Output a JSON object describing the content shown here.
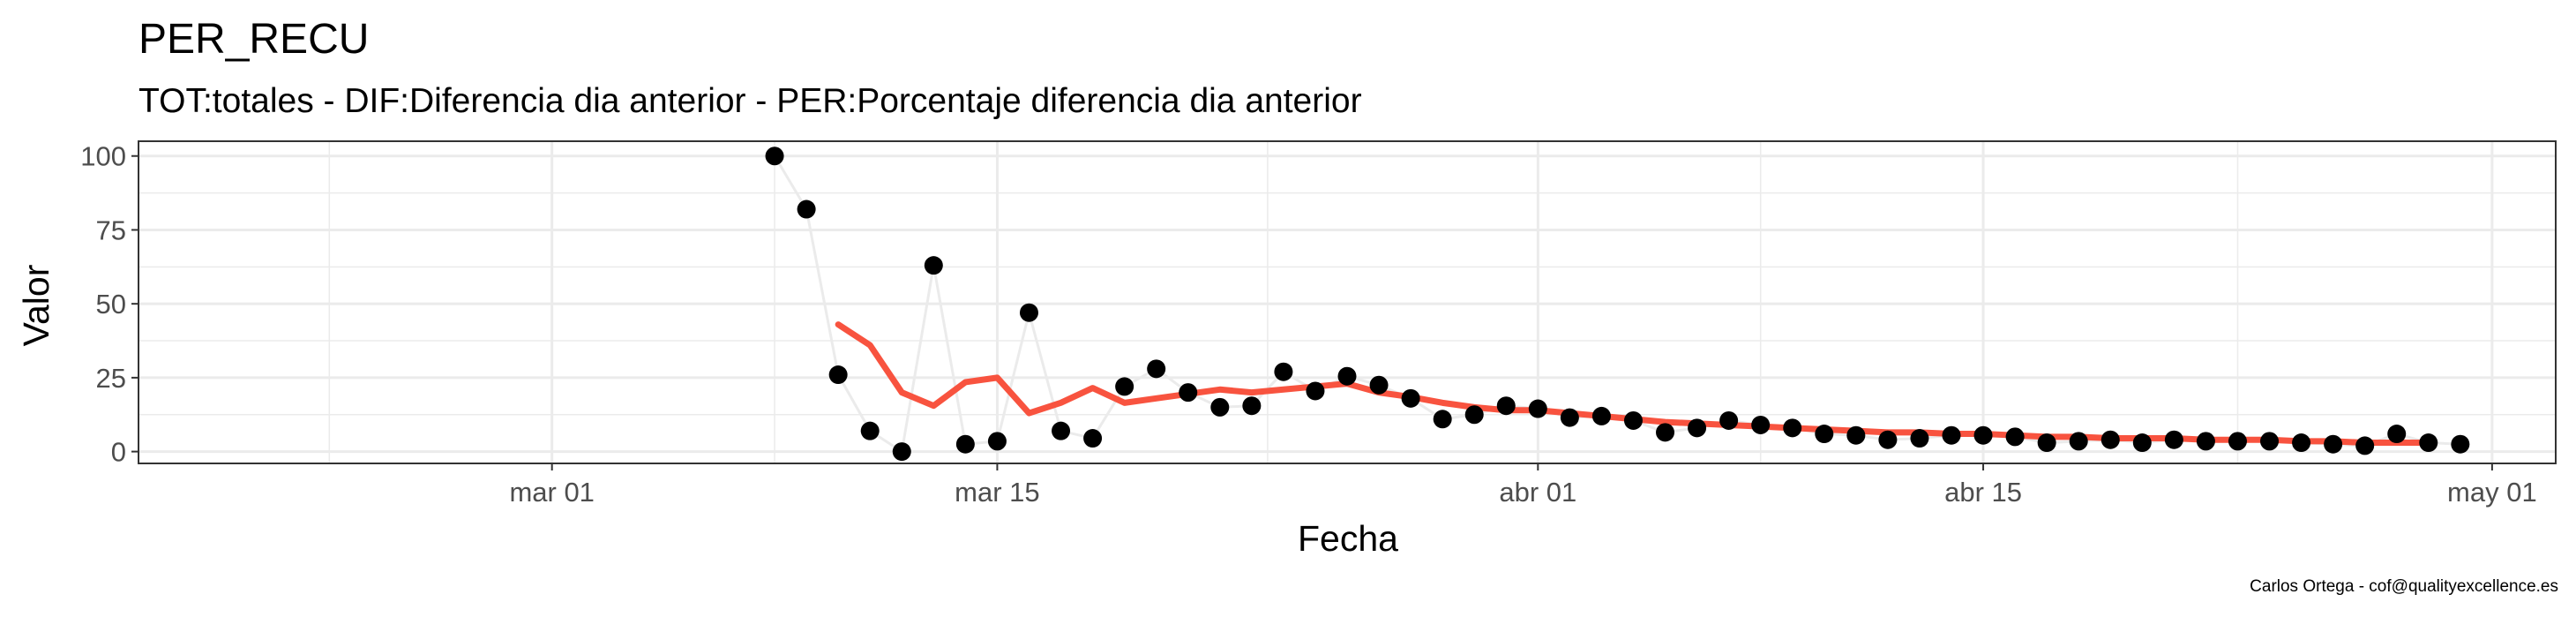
{
  "chart_data": {
    "type": "line",
    "title": "PER_RECU",
    "subtitle": "TOT:totales - DIF:Diferencia dia anterior - PER:Porcentaje diferencia dia anterior",
    "xlabel": "Fecha",
    "ylabel": "Valor",
    "caption": "Carlos Ortega - cof@qualityexcellence.es",
    "xlim": [
      "2020-02-17",
      "2020-05-03"
    ],
    "ylim": [
      -4,
      105
    ],
    "x_ticks": [
      {
        "date": "2020-03-01",
        "label": "mar 01"
      },
      {
        "date": "2020-03-15",
        "label": "mar 15"
      },
      {
        "date": "2020-04-01",
        "label": "abr 01"
      },
      {
        "date": "2020-04-15",
        "label": "abr 15"
      },
      {
        "date": "2020-05-01",
        "label": "may 01"
      }
    ],
    "y_ticks": [
      0,
      25,
      50,
      75,
      100
    ],
    "grid": true,
    "colors": {
      "points": "#000000",
      "raw_line": "#ebebeb",
      "smooth_line": "#f8533f",
      "grid": "#ebebeb",
      "panel_border": "#333333"
    },
    "series": [
      {
        "type": "points",
        "x": [
          "2020-03-08",
          "2020-03-09",
          "2020-03-10",
          "2020-03-11",
          "2020-03-12",
          "2020-03-13",
          "2020-03-14",
          "2020-03-15",
          "2020-03-16",
          "2020-03-17",
          "2020-03-18",
          "2020-03-19",
          "2020-03-20",
          "2020-03-21",
          "2020-03-22",
          "2020-03-23",
          "2020-03-24",
          "2020-03-25",
          "2020-03-26",
          "2020-03-27",
          "2020-03-28",
          "2020-03-29",
          "2020-03-30",
          "2020-03-31",
          "2020-04-01",
          "2020-04-02",
          "2020-04-03",
          "2020-04-04",
          "2020-04-05",
          "2020-04-06",
          "2020-04-07",
          "2020-04-08",
          "2020-04-09",
          "2020-04-10",
          "2020-04-11",
          "2020-04-12",
          "2020-04-13",
          "2020-04-14",
          "2020-04-15",
          "2020-04-16",
          "2020-04-17",
          "2020-04-18",
          "2020-04-19",
          "2020-04-20",
          "2020-04-21",
          "2020-04-22",
          "2020-04-23",
          "2020-04-24",
          "2020-04-25",
          "2020-04-26",
          "2020-04-27",
          "2020-04-28",
          "2020-04-29",
          "2020-04-30"
        ],
        "y": [
          100,
          82,
          26,
          7,
          0,
          63,
          2.5,
          3.5,
          47,
          7,
          4.5,
          22,
          28,
          20,
          15,
          15.5,
          27,
          20.5,
          25.5,
          22.5,
          18,
          11,
          12.5,
          15.5,
          14.5,
          11.5,
          12,
          10.5,
          6.5,
          8,
          10.5,
          9,
          8,
          6,
          5.5,
          4,
          4.5,
          5.5,
          5.5,
          5,
          3,
          3.5,
          4,
          3,
          4,
          3.5,
          3.5,
          3.5,
          3,
          2.5,
          2,
          6,
          3,
          2.5
        ]
      },
      {
        "type": "smooth",
        "x": [
          "2020-03-10",
          "2020-03-11",
          "2020-03-12",
          "2020-03-13",
          "2020-03-14",
          "2020-03-15",
          "2020-03-16",
          "2020-03-17",
          "2020-03-18",
          "2020-03-19",
          "2020-03-20",
          "2020-03-21",
          "2020-03-22",
          "2020-03-23",
          "2020-03-24",
          "2020-03-25",
          "2020-03-26",
          "2020-03-27",
          "2020-03-28",
          "2020-03-29",
          "2020-03-30",
          "2020-03-31",
          "2020-04-01",
          "2020-04-02",
          "2020-04-03",
          "2020-04-04",
          "2020-04-05",
          "2020-04-06",
          "2020-04-07",
          "2020-04-08",
          "2020-04-09",
          "2020-04-10",
          "2020-04-11",
          "2020-04-12",
          "2020-04-13",
          "2020-04-14",
          "2020-04-15",
          "2020-04-16",
          "2020-04-17",
          "2020-04-18",
          "2020-04-19",
          "2020-04-20",
          "2020-04-21",
          "2020-04-22",
          "2020-04-23",
          "2020-04-24",
          "2020-04-25",
          "2020-04-26",
          "2020-04-27",
          "2020-04-28",
          "2020-04-29"
        ],
        "y": [
          43,
          36,
          20,
          15.5,
          23.5,
          25,
          13,
          16.5,
          21.5,
          16.5,
          18,
          19.5,
          21,
          20,
          21,
          22,
          23,
          20,
          18.5,
          16.5,
          15,
          14,
          14,
          13,
          12,
          11,
          10,
          9.5,
          9,
          8.5,
          8,
          7.5,
          7,
          6.5,
          6.5,
          6,
          6,
          5.5,
          5,
          5,
          4.5,
          4.5,
          4.5,
          4,
          4,
          4,
          3.5,
          3.5,
          3,
          3,
          3
        ]
      }
    ]
  }
}
